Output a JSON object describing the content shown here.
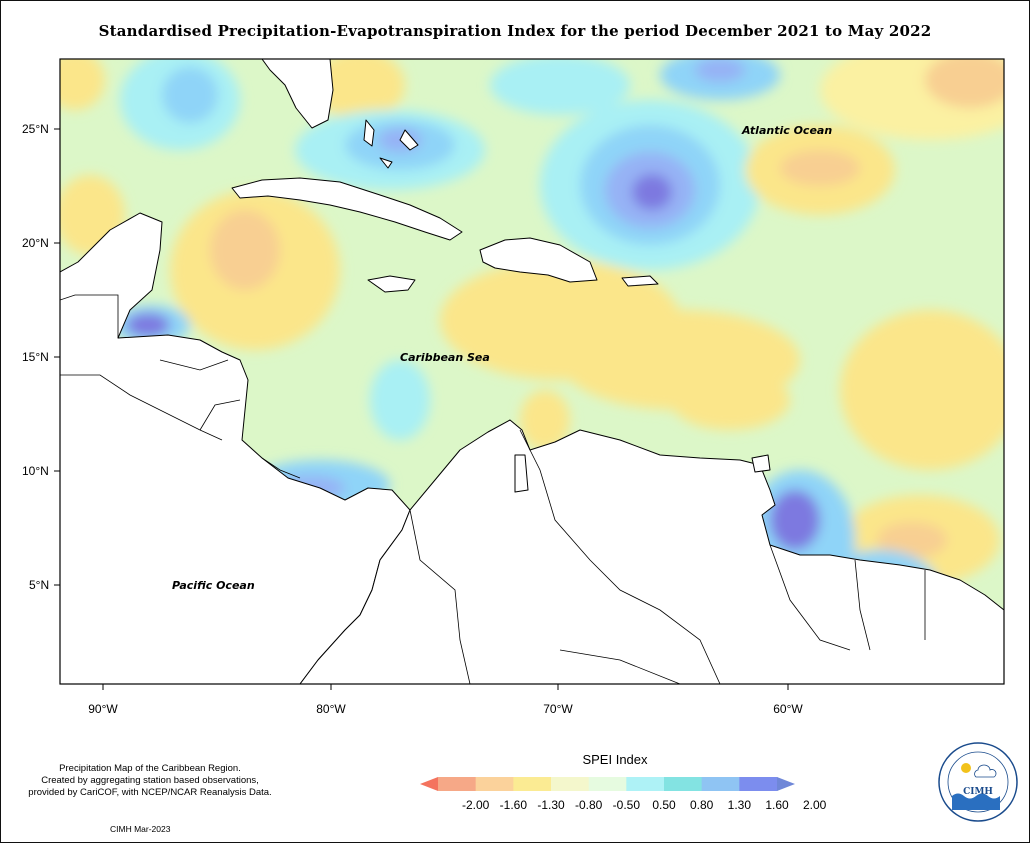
{
  "title": "Standardised Precipitation-Evapotranspiration Index for the period December 2021 to May 2022",
  "axes": {
    "lat_labels": [
      "25°N",
      "20°N",
      "15°N",
      "10°N",
      "5°N"
    ],
    "lon_labels": [
      "90°W",
      "80°W",
      "70°W",
      "60°W"
    ]
  },
  "place_labels": {
    "atlantic": "Atlantic Ocean",
    "caribbean": "Caribbean Sea",
    "pacific": "Pacific Ocean"
  },
  "footnote": [
    "Precipitation Map of the Caribbean Region.",
    "Created by aggregating station based observations,",
    "provided by CariCOF, with NCEP/NCAR Reanalysis Data."
  ],
  "credit": "CIMH Mar-2023",
  "legend": {
    "title": "SPEI Index",
    "labels": [
      "-2.00",
      "-1.60",
      "-1.30",
      "-0.80",
      "-0.50",
      "0.50",
      "0.80",
      "1.30",
      "1.60",
      "2.00"
    ],
    "colors": [
      "#f4735e",
      "#f6a887",
      "#fbd29b",
      "#fbeb93",
      "#f4f7cc",
      "#e6fbe0",
      "#aef2f6",
      "#83e3e2",
      "#8fc4f3",
      "#7c8dee",
      "#6f87d8"
    ]
  },
  "logo": {
    "name": "CIMH",
    "ring_text": "Caribbean Institute for Meteorology and Hydrology"
  },
  "colors": {
    "land": "#ffffff",
    "sea_base": "#dcf7c8",
    "pale_yellow": "#fbf1a2",
    "yellow": "#fbe68a",
    "orange": "#f8cf92",
    "light_blue": "#a9f0f4",
    "blue": "#8fd4f8",
    "mid_blue": "#96b2f5",
    "dark_blue": "#7d79e0"
  }
}
